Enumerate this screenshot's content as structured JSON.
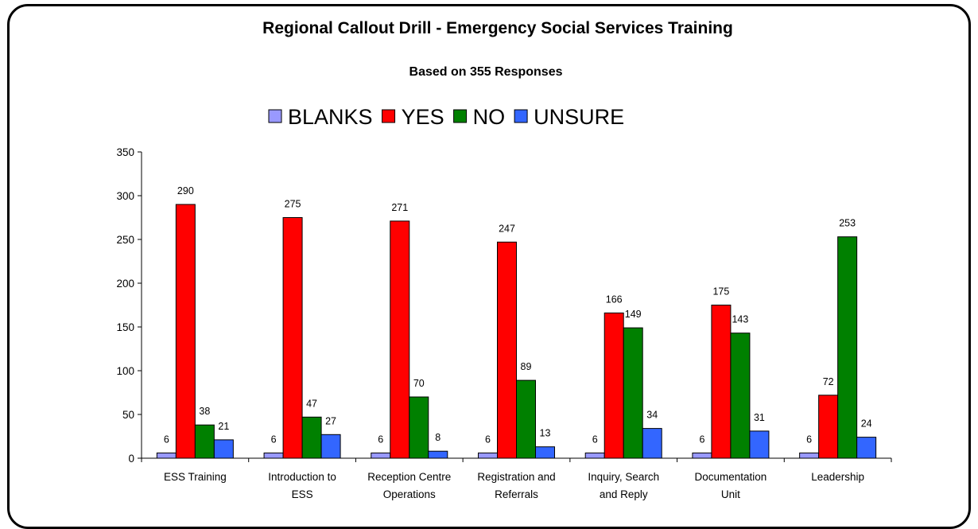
{
  "chart_data": {
    "type": "bar",
    "title": "Regional Callout Drill - Emergency Social Services Training",
    "subtitle": "Based on 355 Responses",
    "categories": [
      [
        "ESS Training"
      ],
      [
        "Introduction to",
        "ESS"
      ],
      [
        "Reception Centre",
        "Operations"
      ],
      [
        "Registration and",
        "Referrals"
      ],
      [
        "Inquiry, Search",
        "and Reply"
      ],
      [
        "Documentation",
        "Unit"
      ],
      [
        "Leadership"
      ]
    ],
    "series": [
      {
        "name": "BLANKS",
        "color": "#9999ff",
        "values": [
          6,
          6,
          6,
          6,
          6,
          6,
          6
        ]
      },
      {
        "name": "YES",
        "color": "#ff0000",
        "values": [
          290,
          275,
          271,
          247,
          166,
          175,
          72
        ]
      },
      {
        "name": "NO",
        "color": "#008000",
        "values": [
          38,
          47,
          70,
          89,
          149,
          143,
          253
        ]
      },
      {
        "name": "UNSURE",
        "color": "#3366ff",
        "values": [
          21,
          27,
          8,
          13,
          34,
          31,
          24
        ]
      }
    ],
    "yticks": [
      0,
      50,
      100,
      150,
      200,
      250,
      300,
      350
    ],
    "ylim": [
      0,
      350
    ],
    "legend_position": "top",
    "grid": false
  }
}
